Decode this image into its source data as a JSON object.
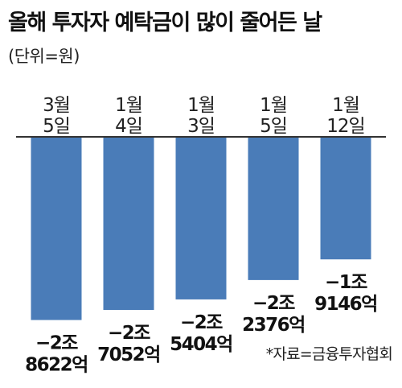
{
  "title": "올해 투자자 예탁금이 많이 줄어든 날",
  "unit": "(단위=원)",
  "source": "*자료=금융투자협회",
  "colors": {
    "bar": "#4a7cb8",
    "baseline": "#333333"
  },
  "chart_data": {
    "type": "bar",
    "orientation": "vertical-downward",
    "categories": [
      [
        "3월",
        "5일"
      ],
      [
        "1월",
        "4일"
      ],
      [
        "1월",
        "3일"
      ],
      [
        "1월",
        "5일"
      ],
      [
        "1월",
        "12일"
      ]
    ],
    "values": [
      -28622,
      -27052,
      -25404,
      -22376,
      -19146
    ],
    "value_units": "억원",
    "labels": [
      [
        "−2조",
        "8622억"
      ],
      [
        "−2조",
        "7052억"
      ],
      [
        "−2조",
        "5404억"
      ],
      [
        "−2조",
        "2376억"
      ],
      [
        "−1조",
        "9146억"
      ]
    ]
  }
}
